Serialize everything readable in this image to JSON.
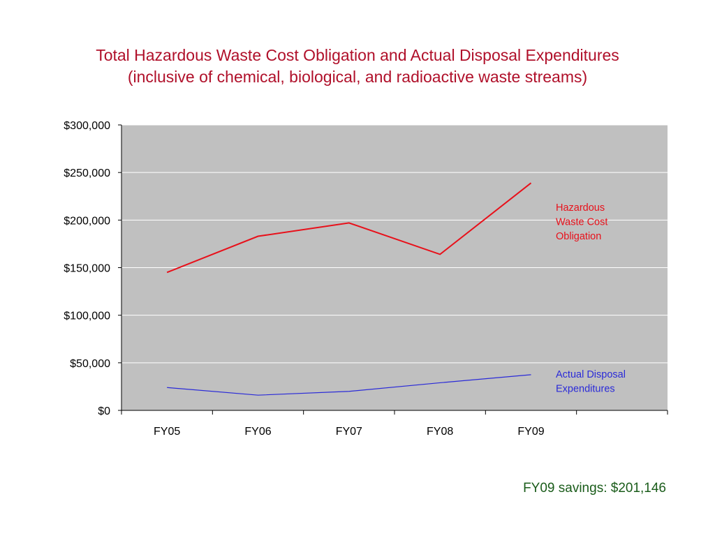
{
  "title": {
    "line1": "Total Hazardous Waste Cost Obligation and Actual Disposal Expenditures",
    "line2": "(inclusive of chemical, biological, and radioactive waste streams)"
  },
  "footer": {
    "savings_text": "FY09 savings: $201,146"
  },
  "colors": {
    "title": "#b0102a",
    "plot_background": "#c0c0c0",
    "gridline": "#ffffff",
    "obligation_series": "#e8101a",
    "expenditure_series": "#2a2ad8",
    "footer": "#1a5c1a"
  },
  "chart_data": {
    "type": "line",
    "title": "Total Hazardous Waste Cost Obligation and Actual Disposal Expenditures",
    "subtitle": "(inclusive of chemical, biological, and radioactive waste streams)",
    "xlabel": "",
    "ylabel": "",
    "categories": [
      "FY05",
      "FY06",
      "FY07",
      "FY08",
      "FY09"
    ],
    "x_slots": 6,
    "ylim": [
      0,
      300000
    ],
    "yticks": [
      0,
      50000,
      100000,
      150000,
      200000,
      250000,
      300000
    ],
    "ytick_labels": [
      "$0",
      "$50,000",
      "$100,000",
      "$150,000",
      "$200,000",
      "$250,000",
      "$300,000"
    ],
    "grid": true,
    "legend": "inline-right",
    "series": [
      {
        "name": "Hazardous Waste Cost Obligation",
        "label_lines": [
          "Hazardous",
          "Waste Cost",
          "Obligation"
        ],
        "color": "#e8101a",
        "values": [
          145000,
          183000,
          197000,
          164000,
          239000
        ]
      },
      {
        "name": "Actual Disposal Expenditures",
        "label_lines": [
          "Actual Disposal",
          "Expenditures"
        ],
        "color": "#2a2ad8",
        "values": [
          24000,
          16000,
          20000,
          29000,
          37500
        ]
      }
    ]
  }
}
